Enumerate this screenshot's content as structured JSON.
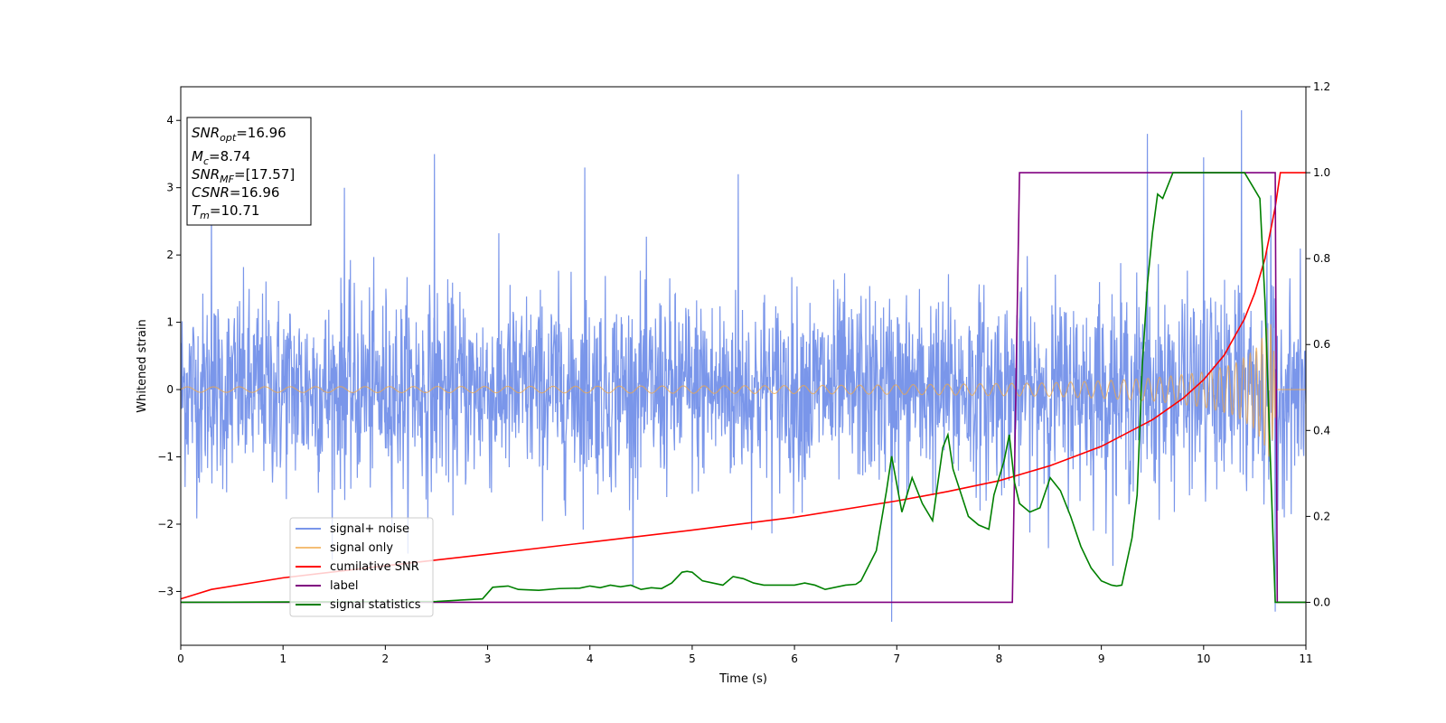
{
  "chart_data": {
    "type": "line",
    "xlabel": "Time (s)",
    "ylabel": "Whitened strain",
    "xlim": [
      0,
      11
    ],
    "ylim": [
      -3.8,
      4.5
    ],
    "y2lim": [
      -0.1,
      1.2
    ],
    "x_ticks": [
      "0",
      "1",
      "2",
      "3",
      "4",
      "5",
      "6",
      "7",
      "8",
      "9",
      "10",
      "11"
    ],
    "y_ticks": [
      {
        "value": -3,
        "label": "−3"
      },
      {
        "value": -2,
        "label": "−2"
      },
      {
        "value": -1,
        "label": "−1"
      },
      {
        "value": 0,
        "label": "0"
      },
      {
        "value": 1,
        "label": "1"
      },
      {
        "value": 2,
        "label": "2"
      },
      {
        "value": 3,
        "label": "3"
      },
      {
        "value": 4,
        "label": "4"
      }
    ],
    "y2_ticks": [
      "0.0",
      "0.2",
      "0.4",
      "0.6",
      "0.8",
      "1.0",
      "1.2"
    ],
    "grid": false,
    "legend_position": "lower-left",
    "info_box": [
      {
        "base": "SNR",
        "sub": "opt",
        "value": "=16.96"
      },
      {
        "base": "M",
        "sub": "c",
        "value": "=8.74"
      },
      {
        "base": "SNR",
        "sub": "MF",
        "value": "=[17.57]"
      },
      {
        "base": "CSNR",
        "sub": "",
        "value": "=16.96"
      },
      {
        "base": "T",
        "sub": "m",
        "value": "=10.71"
      }
    ],
    "series": [
      {
        "name": "signal+ noise",
        "axis": "left",
        "color": "#4169e1",
        "description_envelope": {
          "typical_range": [
            -1.8,
            2.2
          ],
          "spikes": [
            [
              0.3,
              2.9
            ],
            [
              1.6,
              3.0
            ],
            [
              2.48,
              3.5
            ],
            [
              3.95,
              3.3
            ],
            [
              5.45,
              3.2
            ],
            [
              9.45,
              3.8
            ],
            [
              10.0,
              3.45
            ],
            [
              10.37,
              4.15
            ],
            [
              6.95,
              -3.45
            ],
            [
              10.7,
              -3.3
            ]
          ]
        }
      },
      {
        "name": "signal only",
        "axis": "left",
        "color": "#f0a848",
        "amplitude_envelope": {
          "x": [
            0,
            2,
            4,
            6,
            7,
            8,
            8.5,
            9,
            9.5,
            10,
            10.3,
            10.5,
            10.6,
            10.65,
            10.7,
            10.72
          ],
          "y": [
            0.04,
            0.045,
            0.05,
            0.06,
            0.07,
            0.09,
            0.1,
            0.13,
            0.17,
            0.26,
            0.38,
            0.58,
            0.85,
            1.05,
            0.4,
            0
          ]
        }
      },
      {
        "name": "cumilative SNR",
        "axis": "right",
        "color": "#ff0000",
        "x": [
          0,
          0.3,
          1,
          2,
          3,
          4,
          5,
          6,
          7,
          7.5,
          8,
          8.5,
          9,
          9.5,
          9.8,
          10,
          10.2,
          10.4,
          10.5,
          10.6,
          10.65,
          10.7,
          10.75,
          11
        ],
        "y": [
          0.008,
          0.03,
          0.057,
          0.085,
          0.112,
          0.14,
          0.168,
          0.198,
          0.236,
          0.258,
          0.283,
          0.318,
          0.363,
          0.425,
          0.475,
          0.518,
          0.575,
          0.66,
          0.72,
          0.8,
          0.86,
          0.92,
          1.0,
          1.0
        ]
      },
      {
        "name": "label",
        "axis": "right",
        "color": "#800080",
        "x": [
          0,
          8.13,
          8.2,
          10.7,
          10.72,
          11
        ],
        "y": [
          0,
          0,
          1,
          1,
          0,
          0
        ]
      },
      {
        "name": "signal statistics",
        "axis": "right",
        "color": "#008000",
        "x": [
          0,
          2.5,
          2.8,
          2.95,
          3.05,
          3.2,
          3.3,
          3.5,
          3.7,
          3.9,
          4.0,
          4.1,
          4.2,
          4.3,
          4.4,
          4.5,
          4.6,
          4.7,
          4.8,
          4.9,
          4.95,
          5.0,
          5.1,
          5.2,
          5.3,
          5.4,
          5.5,
          5.6,
          5.7,
          5.8,
          5.9,
          6.0,
          6.1,
          6.2,
          6.3,
          6.5,
          6.6,
          6.65,
          6.8,
          6.9,
          6.95,
          7.05,
          7.15,
          7.25,
          7.35,
          7.45,
          7.5,
          7.55,
          7.7,
          7.8,
          7.9,
          7.95,
          8.05,
          8.1,
          8.15,
          8.2,
          8.3,
          8.4,
          8.5,
          8.6,
          8.7,
          8.8,
          8.9,
          9.0,
          9.1,
          9.15,
          9.2,
          9.3,
          9.35,
          9.4,
          9.45,
          9.5,
          9.55,
          9.6,
          9.7,
          9.8,
          9.9,
          10.0,
          10.2,
          10.4,
          10.5,
          10.55,
          10.6,
          10.7,
          10.75,
          10.85,
          11
        ],
        "y": [
          0,
          0.002,
          0.006,
          0.008,
          0.035,
          0.038,
          0.03,
          0.028,
          0.032,
          0.033,
          0.038,
          0.034,
          0.04,
          0.036,
          0.04,
          0.03,
          0.034,
          0.032,
          0.045,
          0.07,
          0.072,
          0.07,
          0.05,
          0.045,
          0.04,
          0.06,
          0.055,
          0.045,
          0.04,
          0.04,
          0.04,
          0.04,
          0.045,
          0.04,
          0.03,
          0.04,
          0.042,
          0.05,
          0.12,
          0.26,
          0.34,
          0.21,
          0.29,
          0.23,
          0.19,
          0.36,
          0.39,
          0.31,
          0.2,
          0.18,
          0.17,
          0.25,
          0.33,
          0.39,
          0.28,
          0.23,
          0.21,
          0.22,
          0.29,
          0.26,
          0.2,
          0.13,
          0.08,
          0.05,
          0.04,
          0.038,
          0.04,
          0.15,
          0.25,
          0.55,
          0.74,
          0.86,
          0.95,
          0.94,
          1.0,
          1.0,
          1.0,
          1.0,
          1.0,
          1.0,
          0.96,
          0.94,
          0.7,
          0.0,
          0.0,
          0.0,
          0.0
        ]
      }
    ]
  }
}
